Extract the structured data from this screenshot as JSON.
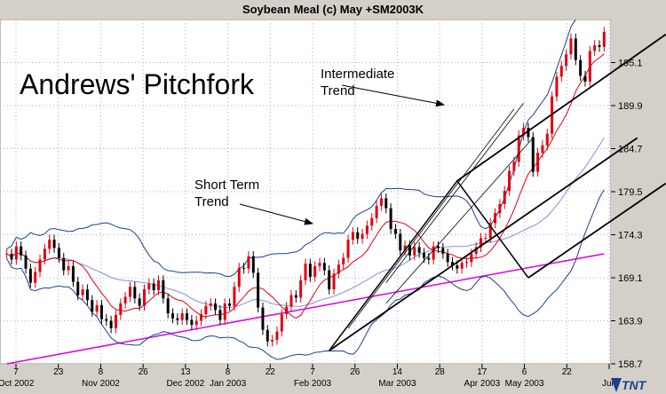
{
  "window": {
    "title": "Soybean Meal (c) May +SM2003K"
  },
  "annotations": {
    "heading": "Andrews' Pitchfork",
    "intermediate_line1": "Intermediate",
    "intermediate_line2": "Trend",
    "short_line1": "Short Term",
    "short_line2": "Trend"
  },
  "logo": {
    "text": "TNT"
  },
  "colors": {
    "background": "#ffffff",
    "grid": "#9fb0c8",
    "bollinger": "#1c3f8f",
    "moving_avg_red": "#e00010",
    "moving_avg_blue": "#8090e0",
    "moving_avg_magenta": "#e000e0",
    "candle_up": "#e00010",
    "candle_down": "#000000",
    "trendlines": "#000000"
  },
  "chart_data": {
    "type": "candlestick",
    "title": "Soybean Meal (c) May +SM2003K",
    "ylim": [
      158.7,
      200.3
    ],
    "y_ticks": [
      158.7,
      163.9,
      169.1,
      174.3,
      179.5,
      184.7,
      189.9,
      195.1
    ],
    "y_tick_labels": [
      "158.7",
      "163.9",
      "169.1",
      "174.3",
      "179.5",
      "184.7",
      "189.9",
      "195.1"
    ],
    "x_tick_labels": [
      {
        "day": "7",
        "month": "Oct 2002"
      },
      {
        "day": "23",
        "month": ""
      },
      {
        "day": "8",
        "month": "Nov 2002"
      },
      {
        "day": "26",
        "month": ""
      },
      {
        "day": "13",
        "month": "Dec 2002"
      },
      {
        "day": "8",
        "month": "Jan 2003"
      },
      {
        "day": "22",
        "month": ""
      },
      {
        "day": "7",
        "month": "Feb 2003"
      },
      {
        "day": "26",
        "month": ""
      },
      {
        "day": "14",
        "month": "Mar 2003"
      },
      {
        "day": "28",
        "month": ""
      },
      {
        "day": "17",
        "month": "Apr 2003"
      },
      {
        "day": "6",
        "month": "May 2003"
      },
      {
        "day": "22",
        "month": ""
      },
      {
        "day": "",
        "month": "Jun"
      }
    ],
    "grid": true,
    "close": [
      172.0,
      171.3,
      172.9,
      171.8,
      170.2,
      168.5,
      169.8,
      171.3,
      172.6,
      173.7,
      172.7,
      171.5,
      170.0,
      170.5,
      168.6,
      167.0,
      167.7,
      166.4,
      165.0,
      165.8,
      164.1,
      163.9,
      163.0,
      164.6,
      166.0,
      166.8,
      168.0,
      166.6,
      165.7,
      167.7,
      168.4,
      167.6,
      168.8,
      166.6,
      164.8,
      164.2,
      164.0,
      164.8,
      164.0,
      163.4,
      163.9,
      164.7,
      165.7,
      166.0,
      165.2,
      164.0,
      166.0,
      165.7,
      168.0,
      170.3,
      170.2,
      171.7,
      169.7,
      165.5,
      162.8,
      161.4,
      161.6,
      162.6,
      164.7,
      165.6,
      167.0,
      166.7,
      168.8,
      170.8,
      169.2,
      170.5,
      170.9,
      170.0,
      167.7,
      169.6,
      170.7,
      171.5,
      173.7,
      174.6,
      173.8,
      174.4,
      175.4,
      176.3,
      177.8,
      178.7,
      177.5,
      175.0,
      174.4,
      172.4,
      173.0,
      171.8,
      172.8,
      172.1,
      171.5,
      171.3,
      172.9,
      172.7,
      172.0,
      171.0,
      170.6,
      170.2,
      170.9,
      171.0,
      172.0,
      172.8,
      173.9,
      173.9,
      175.7,
      176.9,
      178.0,
      179.6,
      182.0,
      183.1,
      186.3,
      187.2,
      186.1,
      181.9,
      184.2,
      185.1,
      186.5,
      191.0,
      193.4,
      194.7,
      196.1,
      198.0,
      195.4,
      193.5,
      192.8,
      196.5,
      197.2,
      197.0,
      198.8
    ],
    "series": [
      {
        "name": "",
        "role": "bollinger-upper"
      },
      {
        "name": "",
        "role": "bollinger-lower"
      },
      {
        "name": "",
        "role": "moving-average-short",
        "color": "#e00010"
      },
      {
        "name": "",
        "role": "moving-average-medium",
        "color": "#8090e0"
      },
      {
        "name": "",
        "role": "moving-average-long",
        "color": "#e000e0",
        "values": [
          [
            0,
            158.7
          ],
          [
            126,
            172.0
          ]
        ]
      }
    ],
    "pitchfork_intermediate": {
      "pivots": [
        [
          68,
          160.3
        ],
        [
          95,
          180.8
        ],
        [
          110,
          169.1
        ]
      ],
      "lines": [
        {
          "from": [
            68,
            160.3
          ],
          "to": [
            133,
            186.0
          ]
        },
        {
          "from": [
            95,
            180.8
          ],
          "to": [
            139,
            198.5
          ]
        },
        {
          "from": [
            110,
            169.1
          ],
          "to": [
            139,
            180.5
          ]
        }
      ]
    },
    "short_term_lines": [
      {
        "from": [
          72,
          163.0
        ],
        "to": [
          107,
          189.5
        ]
      },
      {
        "from": [
          80,
          166.0
        ],
        "to": [
          111,
          186.0
        ]
      },
      {
        "from": [
          80,
          168.5
        ],
        "to": [
          109,
          190.2
        ]
      }
    ]
  }
}
